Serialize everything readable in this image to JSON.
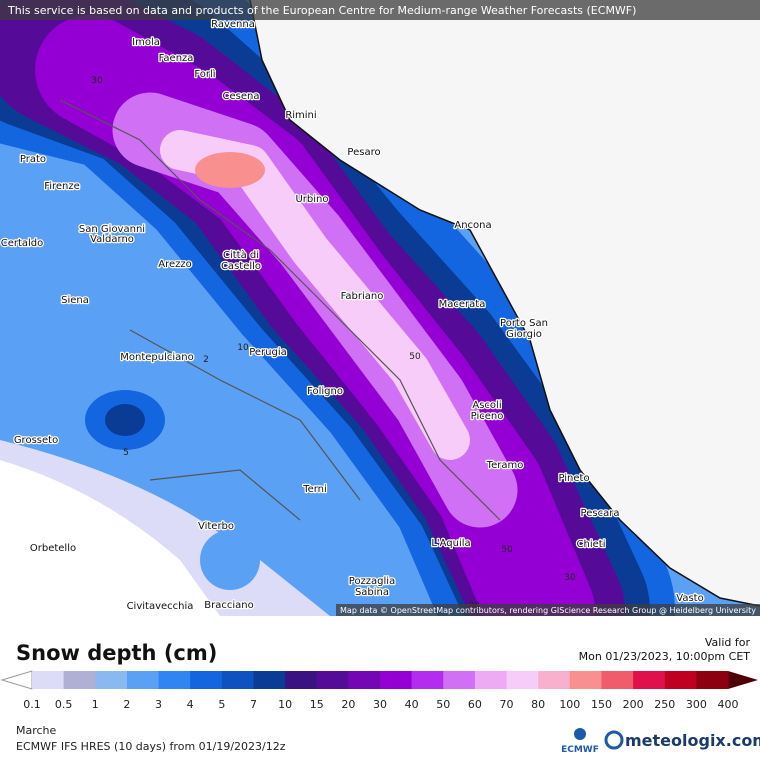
{
  "notice": "This service is based on data and products of the European Centre for Medium-range Weather Forecasts (ECMWF)",
  "cities": [
    "Ravenna",
    "Imola",
    "Faenza",
    "Forlì",
    "Cesena",
    "Rimini",
    "Pesaro",
    "Prato",
    "Firenze",
    "Urbino",
    "Ancona",
    "San Giovanni",
    "Valdarno",
    "Certaldo",
    "Arezzo",
    "Città di",
    "Castello",
    "Fabriano",
    "Macerata",
    "Porto San",
    "Giorgio",
    "Siena",
    "Montepulciano",
    "Perugia",
    "Foligno",
    "Ascoli",
    "Piceno",
    "Grosseto",
    "Teramo",
    "Pineto",
    "Terni",
    "Pescara",
    "Orbetello",
    "Viterbo",
    "L'Aquila",
    "Chieti",
    "Pozzaglia",
    "Sabina",
    "Vasto",
    "Civitavecchia",
    "Bracciano"
  ],
  "contour_labels": [
    "30",
    "2",
    "10",
    "50",
    "5",
    "50",
    "30",
    "30"
  ],
  "attribution": "Map data © OpenStreetMap contributors, rendering GIScience Research Group @ Heidelberg University",
  "title": "Snow depth (cm)",
  "valid_label": "Valid for",
  "valid_time": "Mon 01/23/2023, 10:00pm CET",
  "legend": {
    "labels": [
      "0.1",
      "0.5",
      "1",
      "2",
      "3",
      "4",
      "5",
      "7",
      "10",
      "15",
      "20",
      "30",
      "40",
      "50",
      "60",
      "70",
      "80",
      "100",
      "150",
      "200",
      "250",
      "300",
      "400"
    ],
    "colors": [
      "#dcdcf8",
      "#aeb0d4",
      "#8ab8f0",
      "#5aa0f4",
      "#2e86f2",
      "#1466e0",
      "#0e52c0",
      "#0a3c96",
      "#3a1282",
      "#560a98",
      "#7406b4",
      "#9400d4",
      "#b42cf0",
      "#d070f4",
      "#eeaaf4",
      "#f8ccf8",
      "#f8b0cc",
      "#f89090",
      "#f05c6c",
      "#e0104c",
      "#c00020",
      "#8c0010"
    ]
  },
  "region": "Marche",
  "model": "ECMWF IFS HRES (10 days) from 01/19/2023/12z",
  "logo_left": "ECMWF",
  "logo_right": "meteologix.com"
}
